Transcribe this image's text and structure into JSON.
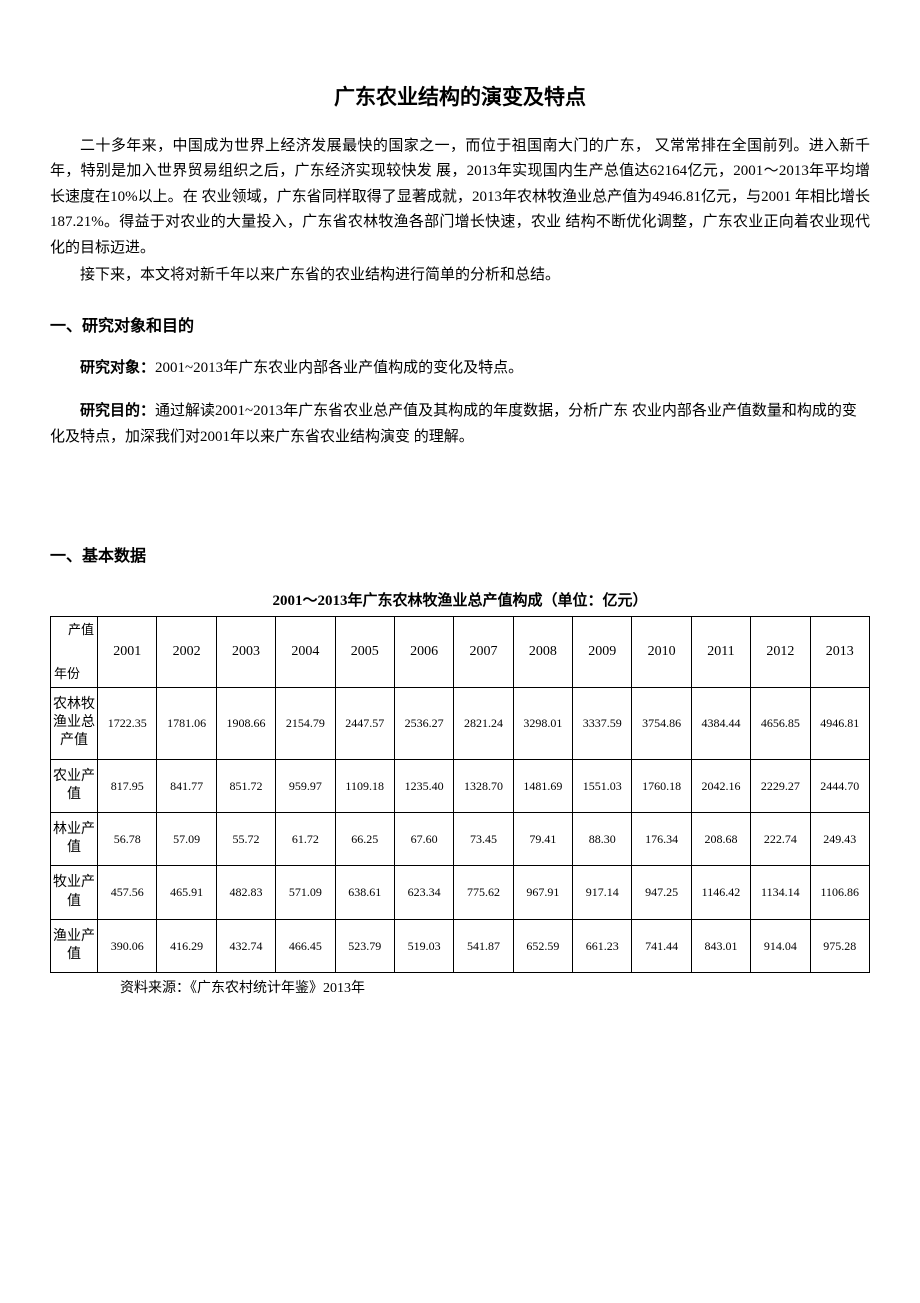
{
  "title": "广东农业结构的演变及特点",
  "paras": {
    "p1": "二十多年来，中国成为世界上经济发展最快的国家之一，而位于祖国南大门的广东，  又常常排在全国前列。进入新千年，特别是加入世界贸易组织之后，广东经济实现较快发  展，2013年实现国内生产总值达62164亿元，2001〜2013年平均增长速度在10%以上。在  农业领域，广东省同样取得了显著成就，2013年农林牧渔业总产值为4946.81亿元，与2001 年相比增长187.21%。得益于对农业的大量投入，广东省农林牧渔各部门增长快速，农业  结构不断优化调整，广东农业正向着农业现代化的目标迈进。",
    "p2": "接下来，本文将对新千年以来广东省的农业结构进行简单的分析和总结。"
  },
  "section1": {
    "heading": "一、研究对象和目的",
    "subject_label": "研究对象：",
    "subject_text": "2001~2013年广东农业内部各业产值构成的变化及特点。",
    "goal_label": "研究目的：",
    "goal_text": "通过解读2001~2013年广东省农业总产值及其构成的年度数据，分析广东  农业内部各业产值数量和构成的变化及特点，加深我们对2001年以来广东省农业结构演变  的理解。"
  },
  "section2": {
    "heading": "一、基本数据",
    "table_title": "2001〜2013年广东农林牧渔业总产值构成（单位：亿元）",
    "corner_top": "产值",
    "corner_bottom": "年份",
    "years": [
      "2001",
      "2002",
      "2003",
      "2004",
      "2005",
      "2006",
      "2007",
      "2008",
      "2009",
      "2010",
      "2011",
      "2012",
      "2013"
    ],
    "rows": [
      {
        "label": "农林牧渔业总产值",
        "vals": [
          "1722.35",
          "1781.06",
          "1908.66",
          "2154.79",
          "2447.57",
          "2536.27",
          "2821.24",
          "3298.01",
          "3337.59",
          "3754.86",
          "4384.44",
          "4656.85",
          "4946.81"
        ]
      },
      {
        "label": "农业产值",
        "vals": [
          "817.95",
          "841.77",
          "851.72",
          "959.97",
          "1109.18",
          "1235.40",
          "1328.70",
          "1481.69",
          "1551.03",
          "1760.18",
          "2042.16",
          "2229.27",
          "2444.70"
        ]
      },
      {
        "label": "林业产值",
        "vals": [
          "56.78",
          "57.09",
          "55.72",
          "61.72",
          "66.25",
          "67.60",
          "73.45",
          "79.41",
          "88.30",
          "176.34",
          "208.68",
          "222.74",
          "249.43"
        ]
      },
      {
        "label": "牧业产值",
        "vals": [
          "457.56",
          "465.91",
          "482.83",
          "571.09",
          "638.61",
          "623.34",
          "775.62",
          "967.91",
          "917.14",
          "947.25",
          "1146.42",
          "1134.14",
          "1106.86"
        ]
      },
      {
        "label": "渔业产值",
        "vals": [
          "390.06",
          "416.29",
          "432.74",
          "466.45",
          "523.79",
          "519.03",
          "541.87",
          "652.59",
          "661.23",
          "741.44",
          "843.01",
          "914.04",
          "975.28"
        ]
      }
    ],
    "source": "资料来源：《广东农村统计年鉴》2013年"
  }
}
